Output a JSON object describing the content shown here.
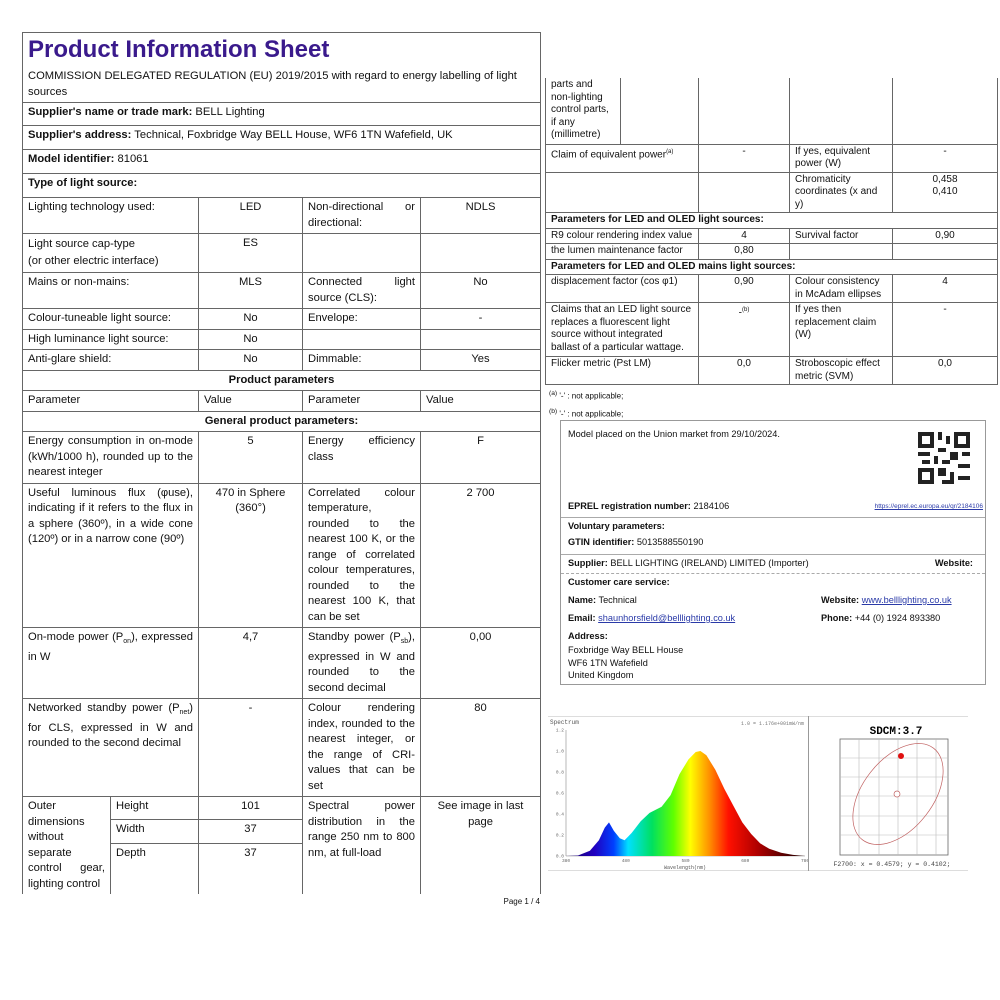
{
  "title": "Product Information Sheet",
  "regulation": "COMMISSION DELEGATED REGULATION (EU) 2019/2015 with regard to energy labelling of light sources",
  "supplier_name": {
    "label": "Supplier's name or trade mark:",
    "value": "BELL Lighting"
  },
  "supplier_address": {
    "label": "Supplier's address:",
    "value": "Technical, Foxbridge Way BELL House, WF6 1TN Wafefield, UK"
  },
  "model": {
    "label": "Model identifier:",
    "value": "81061"
  },
  "type_heading": "Type of light source:",
  "type_rows": [
    {
      "p1": "Lighting technology used:",
      "v1": "LED",
      "p2": "Non-directional or directional:",
      "v2": "NDLS"
    },
    {
      "p1": "Light source cap-type",
      "p1b": "(or other electric interface)",
      "v1": "ES",
      "p2": "",
      "v2": ""
    },
    {
      "p1": "Mains or non-mains:",
      "v1": "MLS",
      "p2": "Connected light source (CLS):",
      "v2": "No"
    },
    {
      "p1": "Colour-tuneable light source:",
      "v1": "No",
      "p2": "Envelope:",
      "v2": "-"
    },
    {
      "p1": "High luminance light source:",
      "v1": "No",
      "p2": "",
      "v2": ""
    },
    {
      "p1": "Anti-glare shield:",
      "v1": "No",
      "p2": "Dimmable:",
      "v2": "Yes"
    }
  ],
  "product_params_heading": "Product parameters",
  "col_headers": [
    "Parameter",
    "Value",
    "Parameter",
    "Value"
  ],
  "general_heading": "General product parameters:",
  "general_rows": [
    {
      "p1": "Energy consumption in on-mode (kWh/1000 h), rounded up to the nearest integer",
      "v1": "5",
      "p2": "Energy efficiency class",
      "v2": "F"
    },
    {
      "p1": "Useful luminous flux (φuse), indicating if it refers to the flux in a sphere (360º), in a wide cone (120º) or in a narrow cone (90º)",
      "v1": "470 in Sphere (360°)",
      "p2": "Correlated colour temperature, rounded to the nearest 100 K, or the range of correlated colour temperatures, rounded to the nearest 100 K, that can be set",
      "v2": "2 700"
    },
    {
      "p1a": "On-mode power (P",
      "p1s": "on",
      "p1b": "), expressed in W",
      "v1": "4,7",
      "p2a": "Standby power (P",
      "p2s": "sb",
      "p2b": "), expressed in W and rounded to the second decimal",
      "v2": "0,00"
    },
    {
      "p1a": "Networked standby power (P",
      "p1s": "net",
      "p1b": ") for CLS, expressed in W and rounded to the second decimal",
      "v1": "-",
      "p2": "Colour rendering index, rounded to the nearest integer, or the range of CRI-values that can be set",
      "v2": "80"
    }
  ],
  "dimensions": {
    "label": "Outer dimensions without separate control gear, lighting control",
    "rows": [
      {
        "name": "Height",
        "value": "101"
      },
      {
        "name": "Width",
        "value": "37"
      },
      {
        "name": "Depth",
        "value": "37"
      }
    ],
    "p2": "Spectral power distribution in the range 250 nm to 800 nm, at full-load",
    "v2": "See image in last page"
  },
  "page_number": "Page 1 / 4",
  "right_table": {
    "cont_label": "parts and non-lighting control parts, if any (millimetre)",
    "claim_equiv": {
      "p1": "Claim of equivalent power",
      "sup": "(a)",
      "v1": "-",
      "p2": "If yes, equivalent power (W)",
      "v2": "-"
    },
    "chromaticity": {
      "p2": "Chromaticity coordinates (x and y)",
      "x": "0,458",
      "y": "0,410"
    },
    "led_heading": "Parameters for LED and OLED light sources:",
    "r9": {
      "p1": "R9 colour rendering index value",
      "v1": "4",
      "p2": "Survival factor",
      "v2": "0,90"
    },
    "lumen": {
      "p1": "the lumen maintenance factor",
      "v1": "0,80"
    },
    "mains_heading": "Parameters for LED and OLED mains light sources:",
    "displacement": {
      "p1": "displacement factor (cos φ1)",
      "v1": "0,90",
      "p2": "Colour consistency in McAdam ellipses",
      "v2": "4"
    },
    "claims": {
      "p1": "Claims that an LED light source replaces a fluorescent light source without integrated ballast of a particular wattage.",
      "v1": "-",
      "sup": "(b)",
      "p2": "If yes then replacement claim (W)",
      "v2": "-"
    },
    "flicker": {
      "p1": "Flicker metric (Pst LM)",
      "v1": "0,0",
      "p2": "Stroboscopic effect metric (SVM)",
      "v2": "0,0"
    }
  },
  "footnotes": [
    {
      "mark": "(a)",
      "text": "'-' : not applicable;"
    },
    {
      "mark": "(b)",
      "text": "'-' : not applicable;"
    }
  ],
  "info": {
    "placed": "Model placed on the Union market from 29/10/2024.",
    "eprel_label": "EPREL registration number:",
    "eprel_value": "2184106",
    "eprel_url": "https://eprel.ec.europa.eu/qr/2184106",
    "voluntary": "Voluntary parameters:",
    "gtin_label": "GTIN identifier:",
    "gtin_value": "5013588550190",
    "supplier_label": "Supplier:",
    "supplier_value": "BELL LIGHTING (IRELAND) LIMITED (Importer)",
    "website_label": "Website:",
    "care": "Customer care service:",
    "name_label": "Name:",
    "name_value": "Technical",
    "care_website_label": "Website:",
    "care_website_value": "www.belllighting.co.uk",
    "email_label": "Email:",
    "email_value": "shaunhorsfield@belllighting.co.uk",
    "phone_label": "Phone:",
    "phone_value": "+44 (0) 1924 893380",
    "address_label": "Address:",
    "address": [
      "Foxbridge Way BELL House",
      "WF6 1TN Wafefield",
      "United Kingdom"
    ]
  },
  "spectrum": {
    "title": "Spectrum",
    "scale_note": "1.0 = 1.176e+001mW/nm",
    "xlabel": "Wavelength(nm)",
    "xticks": [
      "380",
      "480",
      "580",
      "680",
      "780"
    ],
    "yticks": [
      "0.0",
      "0.2",
      "0.4",
      "0.6",
      "0.8",
      "1.0",
      "1.2"
    ],
    "xlim": [
      380,
      780
    ],
    "ylim": [
      0,
      1.2
    ],
    "points": [
      [
        380,
        0
      ],
      [
        400,
        0.005
      ],
      [
        420,
        0.05
      ],
      [
        435,
        0.15
      ],
      [
        445,
        0.27
      ],
      [
        452,
        0.32
      ],
      [
        460,
        0.24
      ],
      [
        470,
        0.17
      ],
      [
        478,
        0.15
      ],
      [
        490,
        0.22
      ],
      [
        505,
        0.33
      ],
      [
        520,
        0.41
      ],
      [
        540,
        0.47
      ],
      [
        555,
        0.58
      ],
      [
        570,
        0.78
      ],
      [
        585,
        0.92
      ],
      [
        597,
        0.99
      ],
      [
        605,
        1.0
      ],
      [
        615,
        0.96
      ],
      [
        630,
        0.82
      ],
      [
        645,
        0.64
      ],
      [
        660,
        0.48
      ],
      [
        675,
        0.32
      ],
      [
        690,
        0.21
      ],
      [
        705,
        0.12
      ],
      [
        720,
        0.07
      ],
      [
        740,
        0.03
      ],
      [
        760,
        0.01
      ],
      [
        780,
        0
      ]
    ]
  },
  "sdcm": {
    "title": "SDCM:3.7",
    "readout": "F2700:  x = 0.4579; y = 0.4102;"
  }
}
